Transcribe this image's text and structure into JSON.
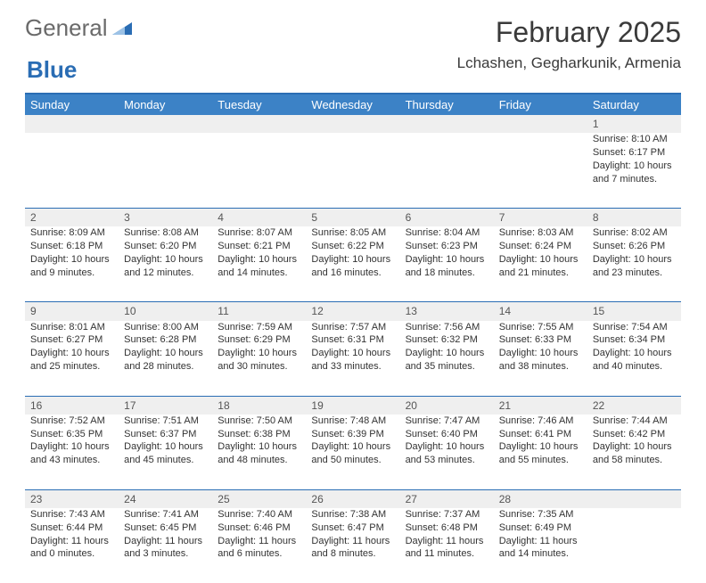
{
  "brand": {
    "part1": "General",
    "part2": "Blue"
  },
  "colors": {
    "accent": "#2a6db4",
    "header_bg": "#3c82c6",
    "header_fg": "#ffffff",
    "daynum_bg": "#efefef",
    "text": "#333333"
  },
  "header": {
    "title": "February 2025",
    "location": "Lchashen, Gegharkunik, Armenia"
  },
  "day_labels": [
    "Sunday",
    "Monday",
    "Tuesday",
    "Wednesday",
    "Thursday",
    "Friday",
    "Saturday"
  ],
  "weeks": [
    [
      {
        "n": "",
        "sunrise": "",
        "sunset": "",
        "daylight1": "",
        "daylight2": ""
      },
      {
        "n": "",
        "sunrise": "",
        "sunset": "",
        "daylight1": "",
        "daylight2": ""
      },
      {
        "n": "",
        "sunrise": "",
        "sunset": "",
        "daylight1": "",
        "daylight2": ""
      },
      {
        "n": "",
        "sunrise": "",
        "sunset": "",
        "daylight1": "",
        "daylight2": ""
      },
      {
        "n": "",
        "sunrise": "",
        "sunset": "",
        "daylight1": "",
        "daylight2": ""
      },
      {
        "n": "",
        "sunrise": "",
        "sunset": "",
        "daylight1": "",
        "daylight2": ""
      },
      {
        "n": "1",
        "sunrise": "Sunrise: 8:10 AM",
        "sunset": "Sunset: 6:17 PM",
        "daylight1": "Daylight: 10 hours",
        "daylight2": "and 7 minutes."
      }
    ],
    [
      {
        "n": "2",
        "sunrise": "Sunrise: 8:09 AM",
        "sunset": "Sunset: 6:18 PM",
        "daylight1": "Daylight: 10 hours",
        "daylight2": "and 9 minutes."
      },
      {
        "n": "3",
        "sunrise": "Sunrise: 8:08 AM",
        "sunset": "Sunset: 6:20 PM",
        "daylight1": "Daylight: 10 hours",
        "daylight2": "and 12 minutes."
      },
      {
        "n": "4",
        "sunrise": "Sunrise: 8:07 AM",
        "sunset": "Sunset: 6:21 PM",
        "daylight1": "Daylight: 10 hours",
        "daylight2": "and 14 minutes."
      },
      {
        "n": "5",
        "sunrise": "Sunrise: 8:05 AM",
        "sunset": "Sunset: 6:22 PM",
        "daylight1": "Daylight: 10 hours",
        "daylight2": "and 16 minutes."
      },
      {
        "n": "6",
        "sunrise": "Sunrise: 8:04 AM",
        "sunset": "Sunset: 6:23 PM",
        "daylight1": "Daylight: 10 hours",
        "daylight2": "and 18 minutes."
      },
      {
        "n": "7",
        "sunrise": "Sunrise: 8:03 AM",
        "sunset": "Sunset: 6:24 PM",
        "daylight1": "Daylight: 10 hours",
        "daylight2": "and 21 minutes."
      },
      {
        "n": "8",
        "sunrise": "Sunrise: 8:02 AM",
        "sunset": "Sunset: 6:26 PM",
        "daylight1": "Daylight: 10 hours",
        "daylight2": "and 23 minutes."
      }
    ],
    [
      {
        "n": "9",
        "sunrise": "Sunrise: 8:01 AM",
        "sunset": "Sunset: 6:27 PM",
        "daylight1": "Daylight: 10 hours",
        "daylight2": "and 25 minutes."
      },
      {
        "n": "10",
        "sunrise": "Sunrise: 8:00 AM",
        "sunset": "Sunset: 6:28 PM",
        "daylight1": "Daylight: 10 hours",
        "daylight2": "and 28 minutes."
      },
      {
        "n": "11",
        "sunrise": "Sunrise: 7:59 AM",
        "sunset": "Sunset: 6:29 PM",
        "daylight1": "Daylight: 10 hours",
        "daylight2": "and 30 minutes."
      },
      {
        "n": "12",
        "sunrise": "Sunrise: 7:57 AM",
        "sunset": "Sunset: 6:31 PM",
        "daylight1": "Daylight: 10 hours",
        "daylight2": "and 33 minutes."
      },
      {
        "n": "13",
        "sunrise": "Sunrise: 7:56 AM",
        "sunset": "Sunset: 6:32 PM",
        "daylight1": "Daylight: 10 hours",
        "daylight2": "and 35 minutes."
      },
      {
        "n": "14",
        "sunrise": "Sunrise: 7:55 AM",
        "sunset": "Sunset: 6:33 PM",
        "daylight1": "Daylight: 10 hours",
        "daylight2": "and 38 minutes."
      },
      {
        "n": "15",
        "sunrise": "Sunrise: 7:54 AM",
        "sunset": "Sunset: 6:34 PM",
        "daylight1": "Daylight: 10 hours",
        "daylight2": "and 40 minutes."
      }
    ],
    [
      {
        "n": "16",
        "sunrise": "Sunrise: 7:52 AM",
        "sunset": "Sunset: 6:35 PM",
        "daylight1": "Daylight: 10 hours",
        "daylight2": "and 43 minutes."
      },
      {
        "n": "17",
        "sunrise": "Sunrise: 7:51 AM",
        "sunset": "Sunset: 6:37 PM",
        "daylight1": "Daylight: 10 hours",
        "daylight2": "and 45 minutes."
      },
      {
        "n": "18",
        "sunrise": "Sunrise: 7:50 AM",
        "sunset": "Sunset: 6:38 PM",
        "daylight1": "Daylight: 10 hours",
        "daylight2": "and 48 minutes."
      },
      {
        "n": "19",
        "sunrise": "Sunrise: 7:48 AM",
        "sunset": "Sunset: 6:39 PM",
        "daylight1": "Daylight: 10 hours",
        "daylight2": "and 50 minutes."
      },
      {
        "n": "20",
        "sunrise": "Sunrise: 7:47 AM",
        "sunset": "Sunset: 6:40 PM",
        "daylight1": "Daylight: 10 hours",
        "daylight2": "and 53 minutes."
      },
      {
        "n": "21",
        "sunrise": "Sunrise: 7:46 AM",
        "sunset": "Sunset: 6:41 PM",
        "daylight1": "Daylight: 10 hours",
        "daylight2": "and 55 minutes."
      },
      {
        "n": "22",
        "sunrise": "Sunrise: 7:44 AM",
        "sunset": "Sunset: 6:42 PM",
        "daylight1": "Daylight: 10 hours",
        "daylight2": "and 58 minutes."
      }
    ],
    [
      {
        "n": "23",
        "sunrise": "Sunrise: 7:43 AM",
        "sunset": "Sunset: 6:44 PM",
        "daylight1": "Daylight: 11 hours",
        "daylight2": "and 0 minutes."
      },
      {
        "n": "24",
        "sunrise": "Sunrise: 7:41 AM",
        "sunset": "Sunset: 6:45 PM",
        "daylight1": "Daylight: 11 hours",
        "daylight2": "and 3 minutes."
      },
      {
        "n": "25",
        "sunrise": "Sunrise: 7:40 AM",
        "sunset": "Sunset: 6:46 PM",
        "daylight1": "Daylight: 11 hours",
        "daylight2": "and 6 minutes."
      },
      {
        "n": "26",
        "sunrise": "Sunrise: 7:38 AM",
        "sunset": "Sunset: 6:47 PM",
        "daylight1": "Daylight: 11 hours",
        "daylight2": "and 8 minutes."
      },
      {
        "n": "27",
        "sunrise": "Sunrise: 7:37 AM",
        "sunset": "Sunset: 6:48 PM",
        "daylight1": "Daylight: 11 hours",
        "daylight2": "and 11 minutes."
      },
      {
        "n": "28",
        "sunrise": "Sunrise: 7:35 AM",
        "sunset": "Sunset: 6:49 PM",
        "daylight1": "Daylight: 11 hours",
        "daylight2": "and 14 minutes."
      },
      {
        "n": "",
        "sunrise": "",
        "sunset": "",
        "daylight1": "",
        "daylight2": ""
      }
    ]
  ]
}
